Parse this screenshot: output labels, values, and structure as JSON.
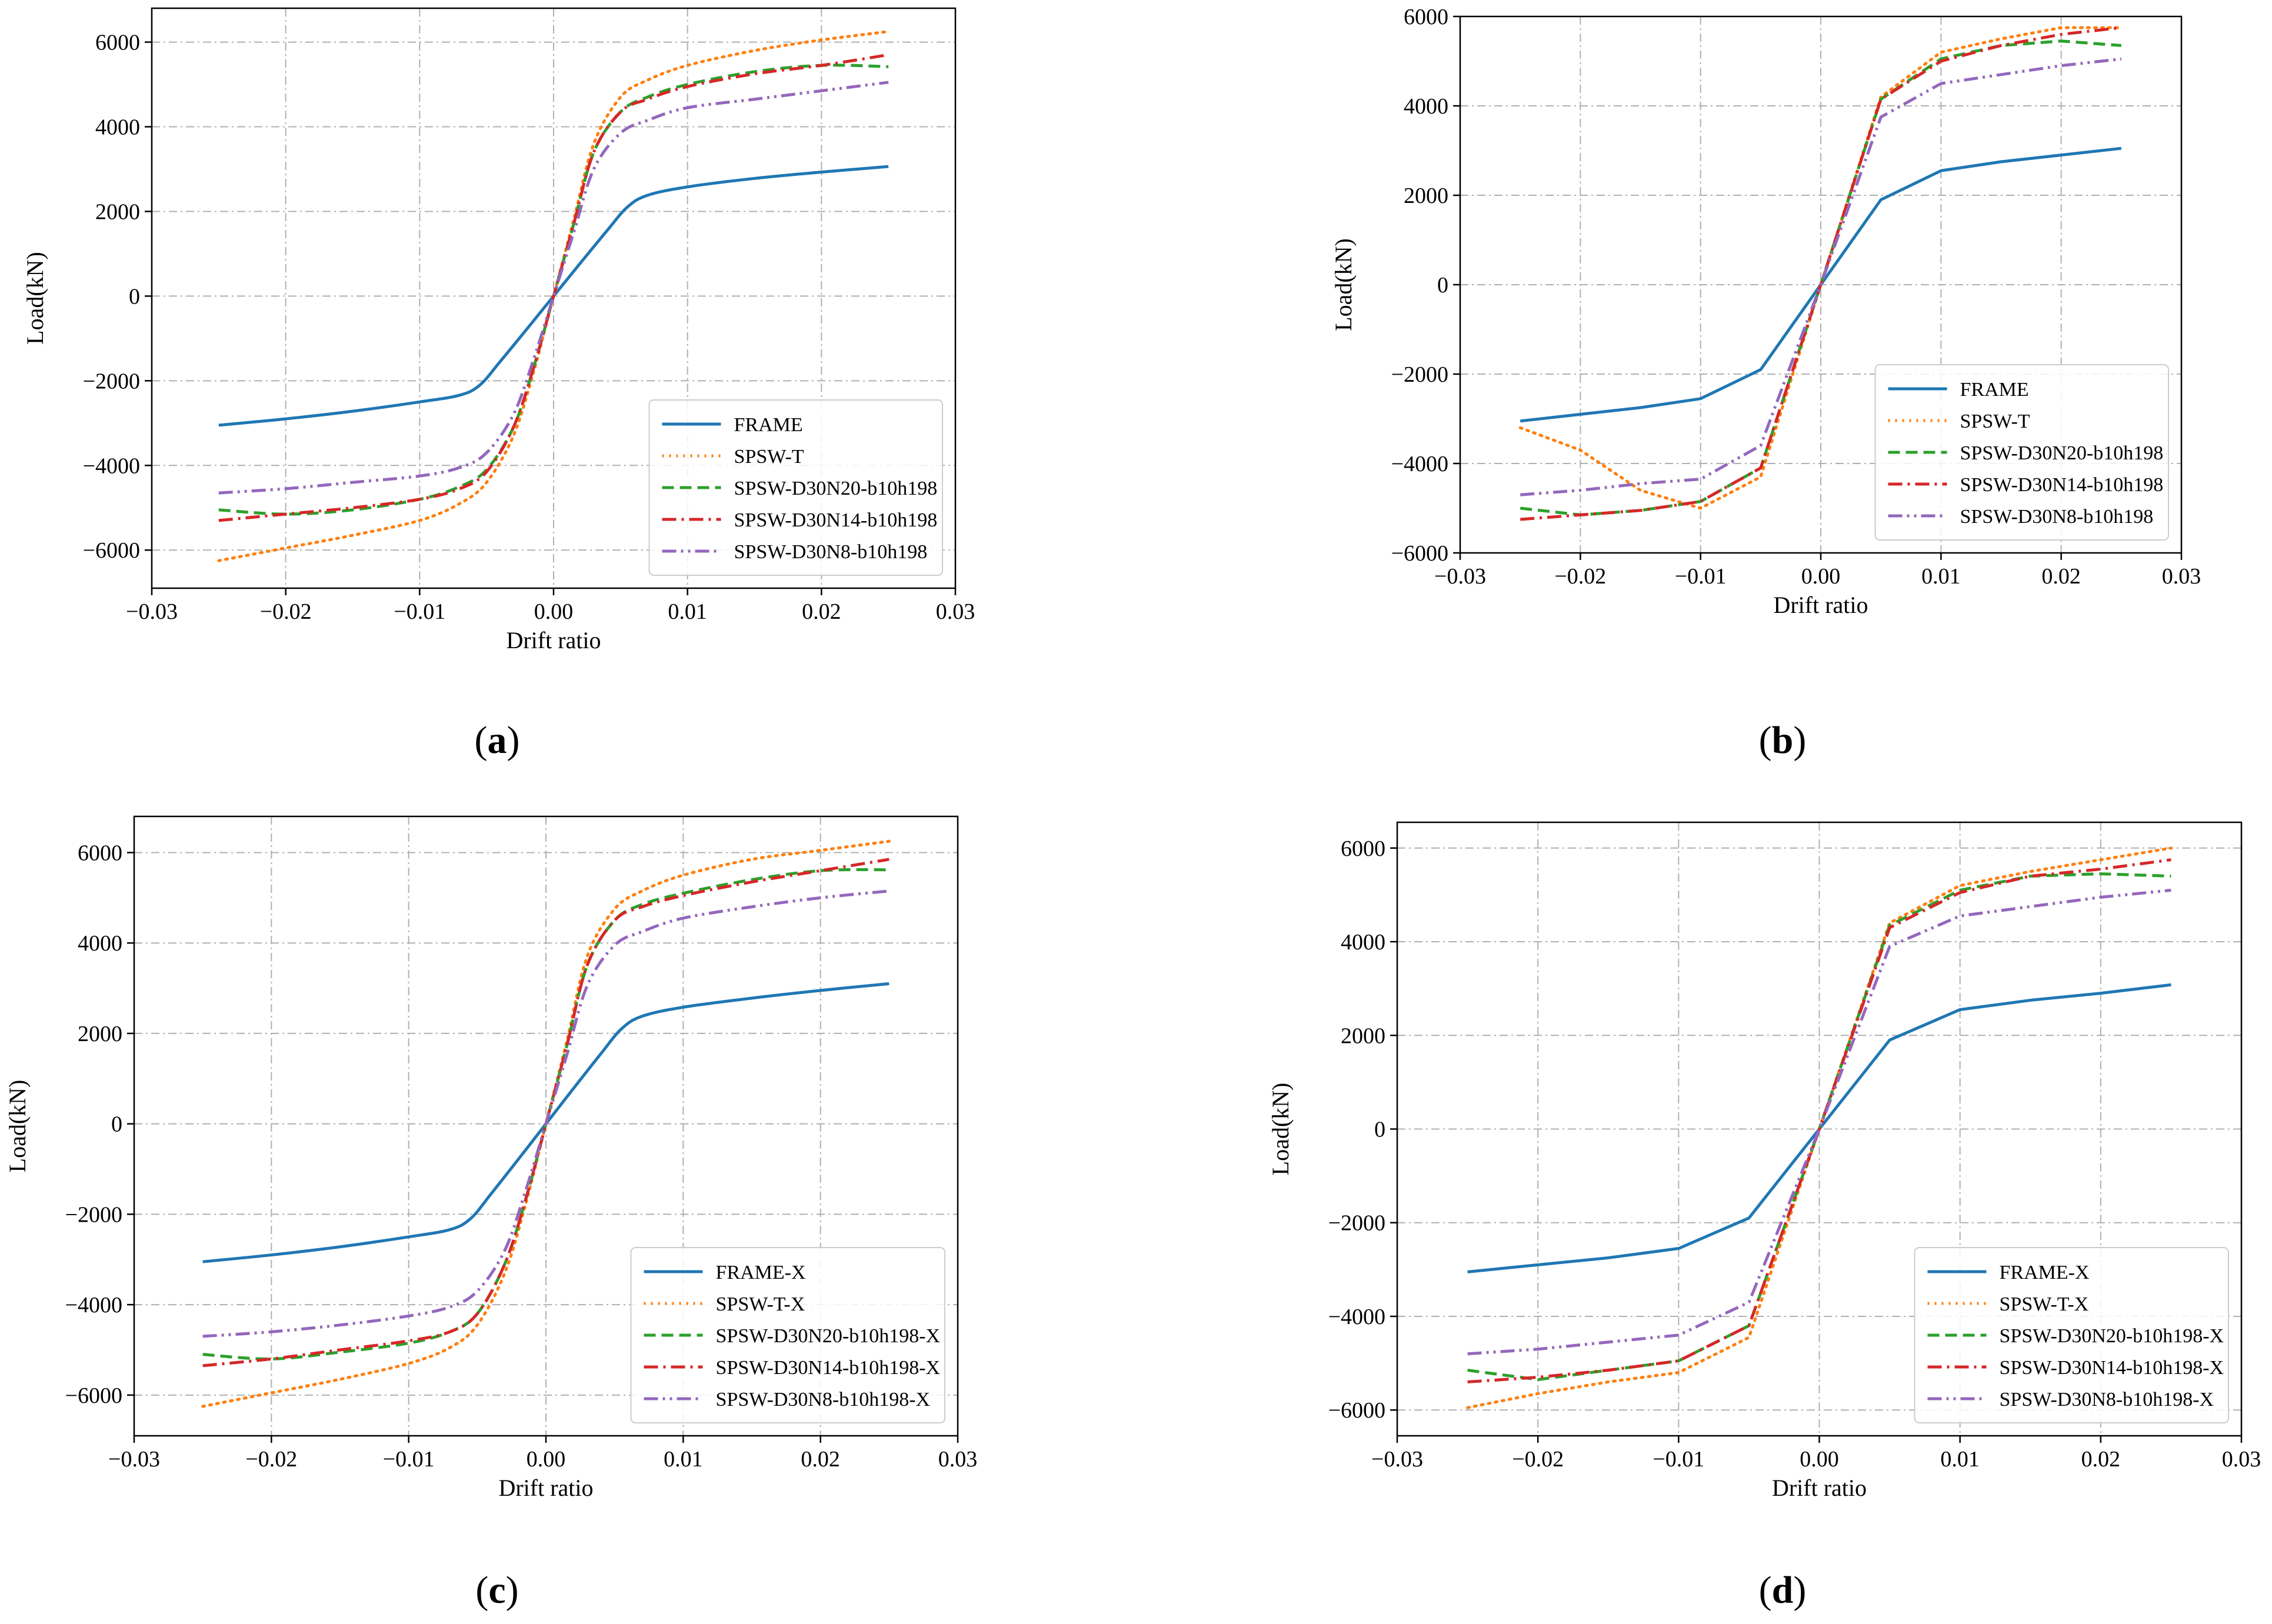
{
  "colors": {
    "FRAME": "#1f77b4",
    "SPSW-T": "#ff7f0e",
    "N20": "#2ca02c",
    "N14": "#d62728",
    "N8": "#9467bd",
    "grid": "#b0b0b0"
  },
  "chart_data": [
    {
      "id": "a",
      "type": "line",
      "caption_letter": "a",
      "xlabel": "Drift ratio",
      "ylabel": "Load(kN)",
      "xlim": [
        -0.03,
        0.03
      ],
      "ylim": [
        -6900,
        6800
      ],
      "xticks": [
        -0.03,
        -0.02,
        -0.01,
        0.0,
        0.01,
        0.02,
        0.03
      ],
      "xtick_labels": [
        "−0.03",
        "−0.02",
        "−0.01",
        "0.00",
        "0.01",
        "0.02",
        "0.03"
      ],
      "yticks": [
        -6000,
        -4000,
        -2000,
        0,
        2000,
        4000,
        6000
      ],
      "ytick_labels": [
        "−6000",
        "−4000",
        "−2000",
        "0",
        "2000",
        "4000",
        "6000"
      ],
      "grid": true,
      "legend_position": "lower-right",
      "smooth": true,
      "series": [
        {
          "name": "FRAME",
          "style": "solid",
          "color_key": "FRAME",
          "x": [
            -0.025,
            -0.02,
            -0.015,
            -0.01,
            -0.007,
            -0.0055,
            -0.004,
            -0.002,
            0,
            0.002,
            0.004,
            0.0055,
            0.007,
            0.01,
            0.015,
            0.02,
            0.025
          ],
          "y": [
            -3050,
            -2900,
            -2720,
            -2500,
            -2340,
            -2100,
            -1550,
            -780,
            0,
            780,
            1550,
            2100,
            2380,
            2580,
            2780,
            2930,
            3060
          ]
        },
        {
          "name": "SPSW-T",
          "style": "dotted",
          "color_key": "SPSW-T",
          "x": [
            -0.025,
            -0.02,
            -0.015,
            -0.01,
            -0.007,
            -0.005,
            -0.003,
            -0.0015,
            0,
            0.0015,
            0.003,
            0.005,
            0.007,
            0.01,
            0.015,
            0.02,
            0.025
          ],
          "y": [
            -6250,
            -5950,
            -5650,
            -5300,
            -4900,
            -4400,
            -3300,
            -1800,
            0,
            1800,
            3600,
            4700,
            5100,
            5450,
            5800,
            6050,
            6250
          ]
        },
        {
          "name": "SPSW-D30N20-b10h198",
          "style": "dashed",
          "color_key": "N20",
          "x": [
            -0.025,
            -0.02,
            -0.015,
            -0.01,
            -0.007,
            -0.005,
            -0.003,
            -0.0015,
            0,
            0.0015,
            0.003,
            0.005,
            0.007,
            0.01,
            0.015,
            0.02,
            0.025
          ],
          "y": [
            -5050,
            -5150,
            -5050,
            -4800,
            -4500,
            -4100,
            -3100,
            -1700,
            0,
            1700,
            3400,
            4350,
            4700,
            5000,
            5300,
            5450,
            5420
          ]
        },
        {
          "name": "SPSW-D30N14-b10h198",
          "style": "dashdot",
          "color_key": "N14",
          "x": [
            -0.025,
            -0.02,
            -0.015,
            -0.01,
            -0.007,
            -0.005,
            -0.003,
            -0.0015,
            0,
            0.0015,
            0.003,
            0.005,
            0.007,
            0.01,
            0.015,
            0.02,
            0.025
          ],
          "y": [
            -5300,
            -5150,
            -5000,
            -4800,
            -4550,
            -4150,
            -3100,
            -1700,
            0,
            1700,
            3400,
            4350,
            4650,
            4950,
            5250,
            5450,
            5700
          ]
        },
        {
          "name": "SPSW-D30N8-b10h198",
          "style": "dashdotdot",
          "color_key": "N8",
          "x": [
            -0.025,
            -0.02,
            -0.015,
            -0.01,
            -0.007,
            -0.005,
            -0.003,
            -0.0015,
            0,
            0.0015,
            0.003,
            0.005,
            0.007,
            0.01,
            0.015,
            0.02,
            0.025
          ],
          "y": [
            -4650,
            -4550,
            -4400,
            -4250,
            -4050,
            -3700,
            -2800,
            -1500,
            0,
            1500,
            3000,
            3850,
            4150,
            4450,
            4650,
            4850,
            5050
          ]
        }
      ]
    },
    {
      "id": "b",
      "type": "line",
      "caption_letter": "b",
      "xlabel": "Drift ratio",
      "ylabel": "Load(kN)",
      "xlim": [
        -0.03,
        0.03
      ],
      "ylim": [
        -6000,
        6000
      ],
      "xticks": [
        -0.03,
        -0.02,
        -0.01,
        0.0,
        0.01,
        0.02,
        0.03
      ],
      "xtick_labels": [
        "−0.03",
        "−0.02",
        "−0.01",
        "0.00",
        "0.01",
        "0.02",
        "0.03"
      ],
      "yticks": [
        -6000,
        -4000,
        -2000,
        0,
        2000,
        4000,
        6000
      ],
      "ytick_labels": [
        "−6000",
        "−4000",
        "−2000",
        "0",
        "2000",
        "4000",
        "6000"
      ],
      "grid": true,
      "legend_position": "lower-right",
      "smooth": false,
      "series": [
        {
          "name": "FRAME",
          "style": "solid",
          "color_key": "FRAME",
          "x": [
            -0.025,
            -0.02,
            -0.015,
            -0.01,
            -0.005,
            0,
            0.005,
            0.01,
            0.015,
            0.02,
            0.025
          ],
          "y": [
            -3050,
            -2900,
            -2750,
            -2550,
            -1900,
            0,
            1900,
            2550,
            2750,
            2900,
            3050
          ]
        },
        {
          "name": "SPSW-T",
          "style": "dotted",
          "color_key": "SPSW-T",
          "x": [
            -0.025,
            -0.02,
            -0.015,
            -0.01,
            -0.005,
            0,
            0.005,
            0.01,
            0.015,
            0.02,
            0.025
          ],
          "y": [
            -3200,
            -3700,
            -4600,
            -5000,
            -4300,
            0,
            4200,
            5200,
            5500,
            5750,
            5750
          ]
        },
        {
          "name": "SPSW-D30N20-b10h198",
          "style": "dashed",
          "color_key": "N20",
          "x": [
            -0.025,
            -0.02,
            -0.015,
            -0.01,
            -0.005,
            0,
            0.005,
            0.01,
            0.015,
            0.02,
            0.025
          ],
          "y": [
            -5000,
            -5150,
            -5050,
            -4850,
            -4100,
            0,
            4150,
            5050,
            5350,
            5450,
            5350
          ]
        },
        {
          "name": "SPSW-D30N14-b10h198",
          "style": "dashdot",
          "color_key": "N14",
          "x": [
            -0.025,
            -0.02,
            -0.015,
            -0.01,
            -0.005,
            0,
            0.005,
            0.01,
            0.015,
            0.02,
            0.025
          ],
          "y": [
            -5250,
            -5150,
            -5050,
            -4850,
            -4100,
            0,
            4150,
            5000,
            5350,
            5600,
            5750
          ]
        },
        {
          "name": "SPSW-D30N8-b10h198",
          "style": "dashdotdot",
          "color_key": "N8",
          "x": [
            -0.025,
            -0.02,
            -0.015,
            -0.01,
            -0.005,
            0,
            0.005,
            0.01,
            0.015,
            0.02,
            0.025
          ],
          "y": [
            -4700,
            -4600,
            -4450,
            -4350,
            -3600,
            0,
            3750,
            4500,
            4700,
            4900,
            5050
          ]
        }
      ]
    },
    {
      "id": "c",
      "type": "line",
      "caption_letter": "c",
      "xlabel": "Drift ratio",
      "ylabel": "Load(kN)",
      "xlim": [
        -0.03,
        0.03
      ],
      "ylim": [
        -6900,
        6800
      ],
      "xticks": [
        -0.03,
        -0.02,
        -0.01,
        0.0,
        0.01,
        0.02,
        0.03
      ],
      "xtick_labels": [
        "−0.03",
        "−0.02",
        "−0.01",
        "0.00",
        "0.01",
        "0.02",
        "0.03"
      ],
      "yticks": [
        -6000,
        -4000,
        -2000,
        0,
        2000,
        4000,
        6000
      ],
      "ytick_labels": [
        "−6000",
        "−4000",
        "−2000",
        "0",
        "2000",
        "4000",
        "6000"
      ],
      "grid": true,
      "legend_position": "lower-right",
      "smooth": true,
      "series": [
        {
          "name": "FRAME-X",
          "style": "solid",
          "color_key": "FRAME",
          "x": [
            -0.025,
            -0.02,
            -0.015,
            -0.01,
            -0.007,
            -0.0055,
            -0.004,
            -0.002,
            0,
            0.002,
            0.004,
            0.0055,
            0.007,
            0.01,
            0.015,
            0.02,
            0.025
          ],
          "y": [
            -3050,
            -2900,
            -2720,
            -2500,
            -2340,
            -2100,
            -1550,
            -780,
            0,
            780,
            1550,
            2100,
            2380,
            2580,
            2780,
            2950,
            3100
          ]
        },
        {
          "name": "SPSW-T-X",
          "style": "dotted",
          "color_key": "SPSW-T",
          "x": [
            -0.025,
            -0.02,
            -0.015,
            -0.01,
            -0.007,
            -0.005,
            -0.003,
            -0.0015,
            0,
            0.0015,
            0.003,
            0.005,
            0.007,
            0.01,
            0.015,
            0.02,
            0.025
          ],
          "y": [
            -6250,
            -5950,
            -5650,
            -5300,
            -4950,
            -4450,
            -3300,
            -1800,
            0,
            1800,
            3700,
            4750,
            5150,
            5500,
            5850,
            6050,
            6250
          ]
        },
        {
          "name": "SPSW-D30N20-b10h198-X",
          "style": "dashed",
          "color_key": "N20",
          "x": [
            -0.025,
            -0.02,
            -0.015,
            -0.01,
            -0.007,
            -0.005,
            -0.003,
            -0.0015,
            0,
            0.0015,
            0.003,
            0.005,
            0.007,
            0.01,
            0.015,
            0.02,
            0.025
          ],
          "y": [
            -5100,
            -5200,
            -5050,
            -4850,
            -4600,
            -4200,
            -3100,
            -1700,
            0,
            1700,
            3500,
            4500,
            4850,
            5100,
            5400,
            5600,
            5620
          ]
        },
        {
          "name": "SPSW-D30N14-b10h198-X",
          "style": "dashdot",
          "color_key": "N14",
          "x": [
            -0.025,
            -0.02,
            -0.015,
            -0.01,
            -0.007,
            -0.005,
            -0.003,
            -0.0015,
            0,
            0.0015,
            0.003,
            0.005,
            0.007,
            0.01,
            0.015,
            0.02,
            0.025
          ],
          "y": [
            -5350,
            -5200,
            -5000,
            -4800,
            -4600,
            -4200,
            -3100,
            -1700,
            0,
            1700,
            3500,
            4500,
            4800,
            5050,
            5350,
            5600,
            5850
          ]
        },
        {
          "name": "SPSW-D30N8-b10h198-X",
          "style": "dashdotdot",
          "color_key": "N8",
          "x": [
            -0.025,
            -0.02,
            -0.015,
            -0.01,
            -0.007,
            -0.005,
            -0.003,
            -0.0015,
            0,
            0.0015,
            0.003,
            0.005,
            0.007,
            0.01,
            0.015,
            0.02,
            0.025
          ],
          "y": [
            -4700,
            -4600,
            -4450,
            -4250,
            -4050,
            -3700,
            -2800,
            -1500,
            0,
            1500,
            3050,
            3950,
            4250,
            4550,
            4800,
            5000,
            5150
          ]
        }
      ]
    },
    {
      "id": "d",
      "type": "line",
      "caption_letter": "d",
      "xlabel": "Drift ratio",
      "ylabel": "Load(kN)",
      "xlim": [
        -0.03,
        0.03
      ],
      "ylim": [
        -6550,
        6550
      ],
      "xticks": [
        -0.03,
        -0.02,
        -0.01,
        0.0,
        0.01,
        0.02,
        0.03
      ],
      "xtick_labels": [
        "−0.03",
        "−0.02",
        "−0.01",
        "0.00",
        "0.01",
        "0.02",
        "0.03"
      ],
      "yticks": [
        -6000,
        -4000,
        -2000,
        0,
        2000,
        4000,
        6000
      ],
      "ytick_labels": [
        "−6000",
        "−4000",
        "−2000",
        "0",
        "2000",
        "4000",
        "6000"
      ],
      "grid": true,
      "legend_position": "lower-right",
      "smooth": false,
      "series": [
        {
          "name": "FRAME-X",
          "style": "solid",
          "color_key": "FRAME",
          "x": [
            -0.025,
            -0.02,
            -0.015,
            -0.01,
            -0.005,
            0,
            0.005,
            0.01,
            0.015,
            0.02,
            0.025
          ],
          "y": [
            -3050,
            -2900,
            -2750,
            -2550,
            -1900,
            0,
            1900,
            2550,
            2750,
            2900,
            3080
          ]
        },
        {
          "name": "SPSW-T-X",
          "style": "dotted",
          "color_key": "SPSW-T",
          "x": [
            -0.025,
            -0.02,
            -0.015,
            -0.01,
            -0.005,
            0,
            0.005,
            0.01,
            0.015,
            0.02,
            0.025
          ],
          "y": [
            -5950,
            -5650,
            -5400,
            -5200,
            -4450,
            0,
            4400,
            5200,
            5500,
            5750,
            6000
          ]
        },
        {
          "name": "SPSW-D30N20-b10h198-X",
          "style": "dashed",
          "color_key": "N20",
          "x": [
            -0.025,
            -0.02,
            -0.015,
            -0.01,
            -0.005,
            0,
            0.005,
            0.01,
            0.015,
            0.02,
            0.025
          ],
          "y": [
            -5150,
            -5350,
            -5150,
            -4950,
            -4200,
            0,
            4350,
            5100,
            5400,
            5450,
            5400
          ]
        },
        {
          "name": "SPSW-D30N14-b10h198-X",
          "style": "dashdot",
          "color_key": "N14",
          "x": [
            -0.025,
            -0.02,
            -0.015,
            -0.01,
            -0.005,
            0,
            0.005,
            0.01,
            0.015,
            0.02,
            0.025
          ],
          "y": [
            -5400,
            -5300,
            -5150,
            -4950,
            -4200,
            0,
            4300,
            5050,
            5400,
            5550,
            5750
          ]
        },
        {
          "name": "SPSW-D30N8-b10h198-X",
          "style": "dashdotdot",
          "color_key": "N8",
          "x": [
            -0.025,
            -0.02,
            -0.015,
            -0.01,
            -0.005,
            0,
            0.005,
            0.01,
            0.015,
            0.02,
            0.025
          ],
          "y": [
            -4800,
            -4700,
            -4550,
            -4400,
            -3700,
            0,
            3900,
            4550,
            4750,
            4950,
            5100
          ]
        }
      ]
    }
  ]
}
